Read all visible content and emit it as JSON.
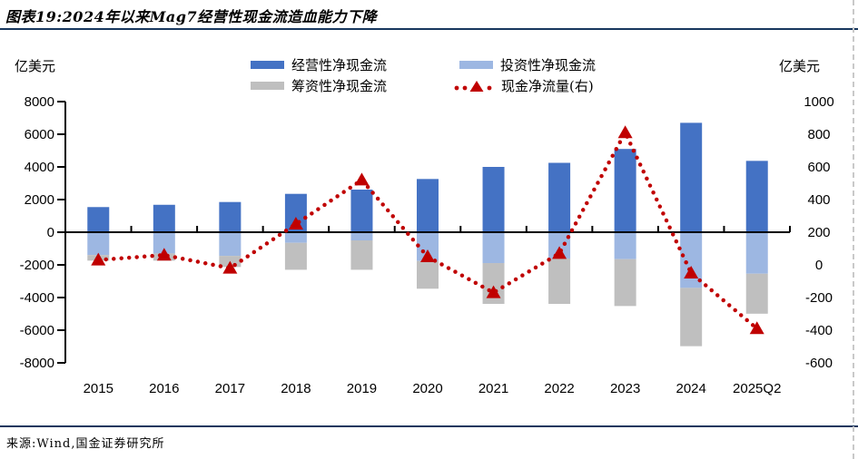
{
  "title": "图表19:2024年以来Mag7经营性现金流造血能力下降",
  "source": "来源:Wind,国金证券研究所",
  "rule_color": "#17375E",
  "chart_data": {
    "type": "bar",
    "subtype": "stacked-bar-with-dotted-line",
    "title": "",
    "categories": [
      "2015",
      "2016",
      "2017",
      "2018",
      "2019",
      "2020",
      "2021",
      "2022",
      "2023",
      "2024",
      "2025Q2"
    ],
    "series": [
      {
        "name": "经营性净现金流",
        "type": "bar",
        "axis": "left",
        "color": "#4472C4",
        "values": [
          1540,
          1680,
          1850,
          2350,
          2610,
          3260,
          4000,
          4250,
          5100,
          6700,
          4370
        ]
      },
      {
        "name": "投资性净现金流",
        "type": "bar",
        "axis": "left",
        "color": "#9DB7E2",
        "values": [
          -1400,
          -1300,
          -1450,
          -650,
          -500,
          -1760,
          -1890,
          -1610,
          -1650,
          -3410,
          -2540
        ]
      },
      {
        "name": "筹资性净现金流",
        "type": "bar",
        "axis": "left",
        "color": "#BFBFBF",
        "values": [
          -340,
          -440,
          -680,
          -1650,
          -1800,
          -1700,
          -2500,
          -2780,
          -2870,
          -3570,
          -2450
        ]
      },
      {
        "name": "现金净流量(右)",
        "type": "line",
        "axis": "right",
        "color": "#C00000",
        "marker": "triangle",
        "line_style": "dotted",
        "values": [
          30,
          60,
          -20,
          250,
          520,
          50,
          -170,
          70,
          810,
          -50,
          -390
        ]
      }
    ],
    "left_axis": {
      "label": "亿美元",
      "min": -8000,
      "max": 8000,
      "step": 2000
    },
    "right_axis": {
      "label": "亿美元",
      "min": -600,
      "max": 1000,
      "step": 200
    },
    "legend_position": "top",
    "grid": false
  }
}
